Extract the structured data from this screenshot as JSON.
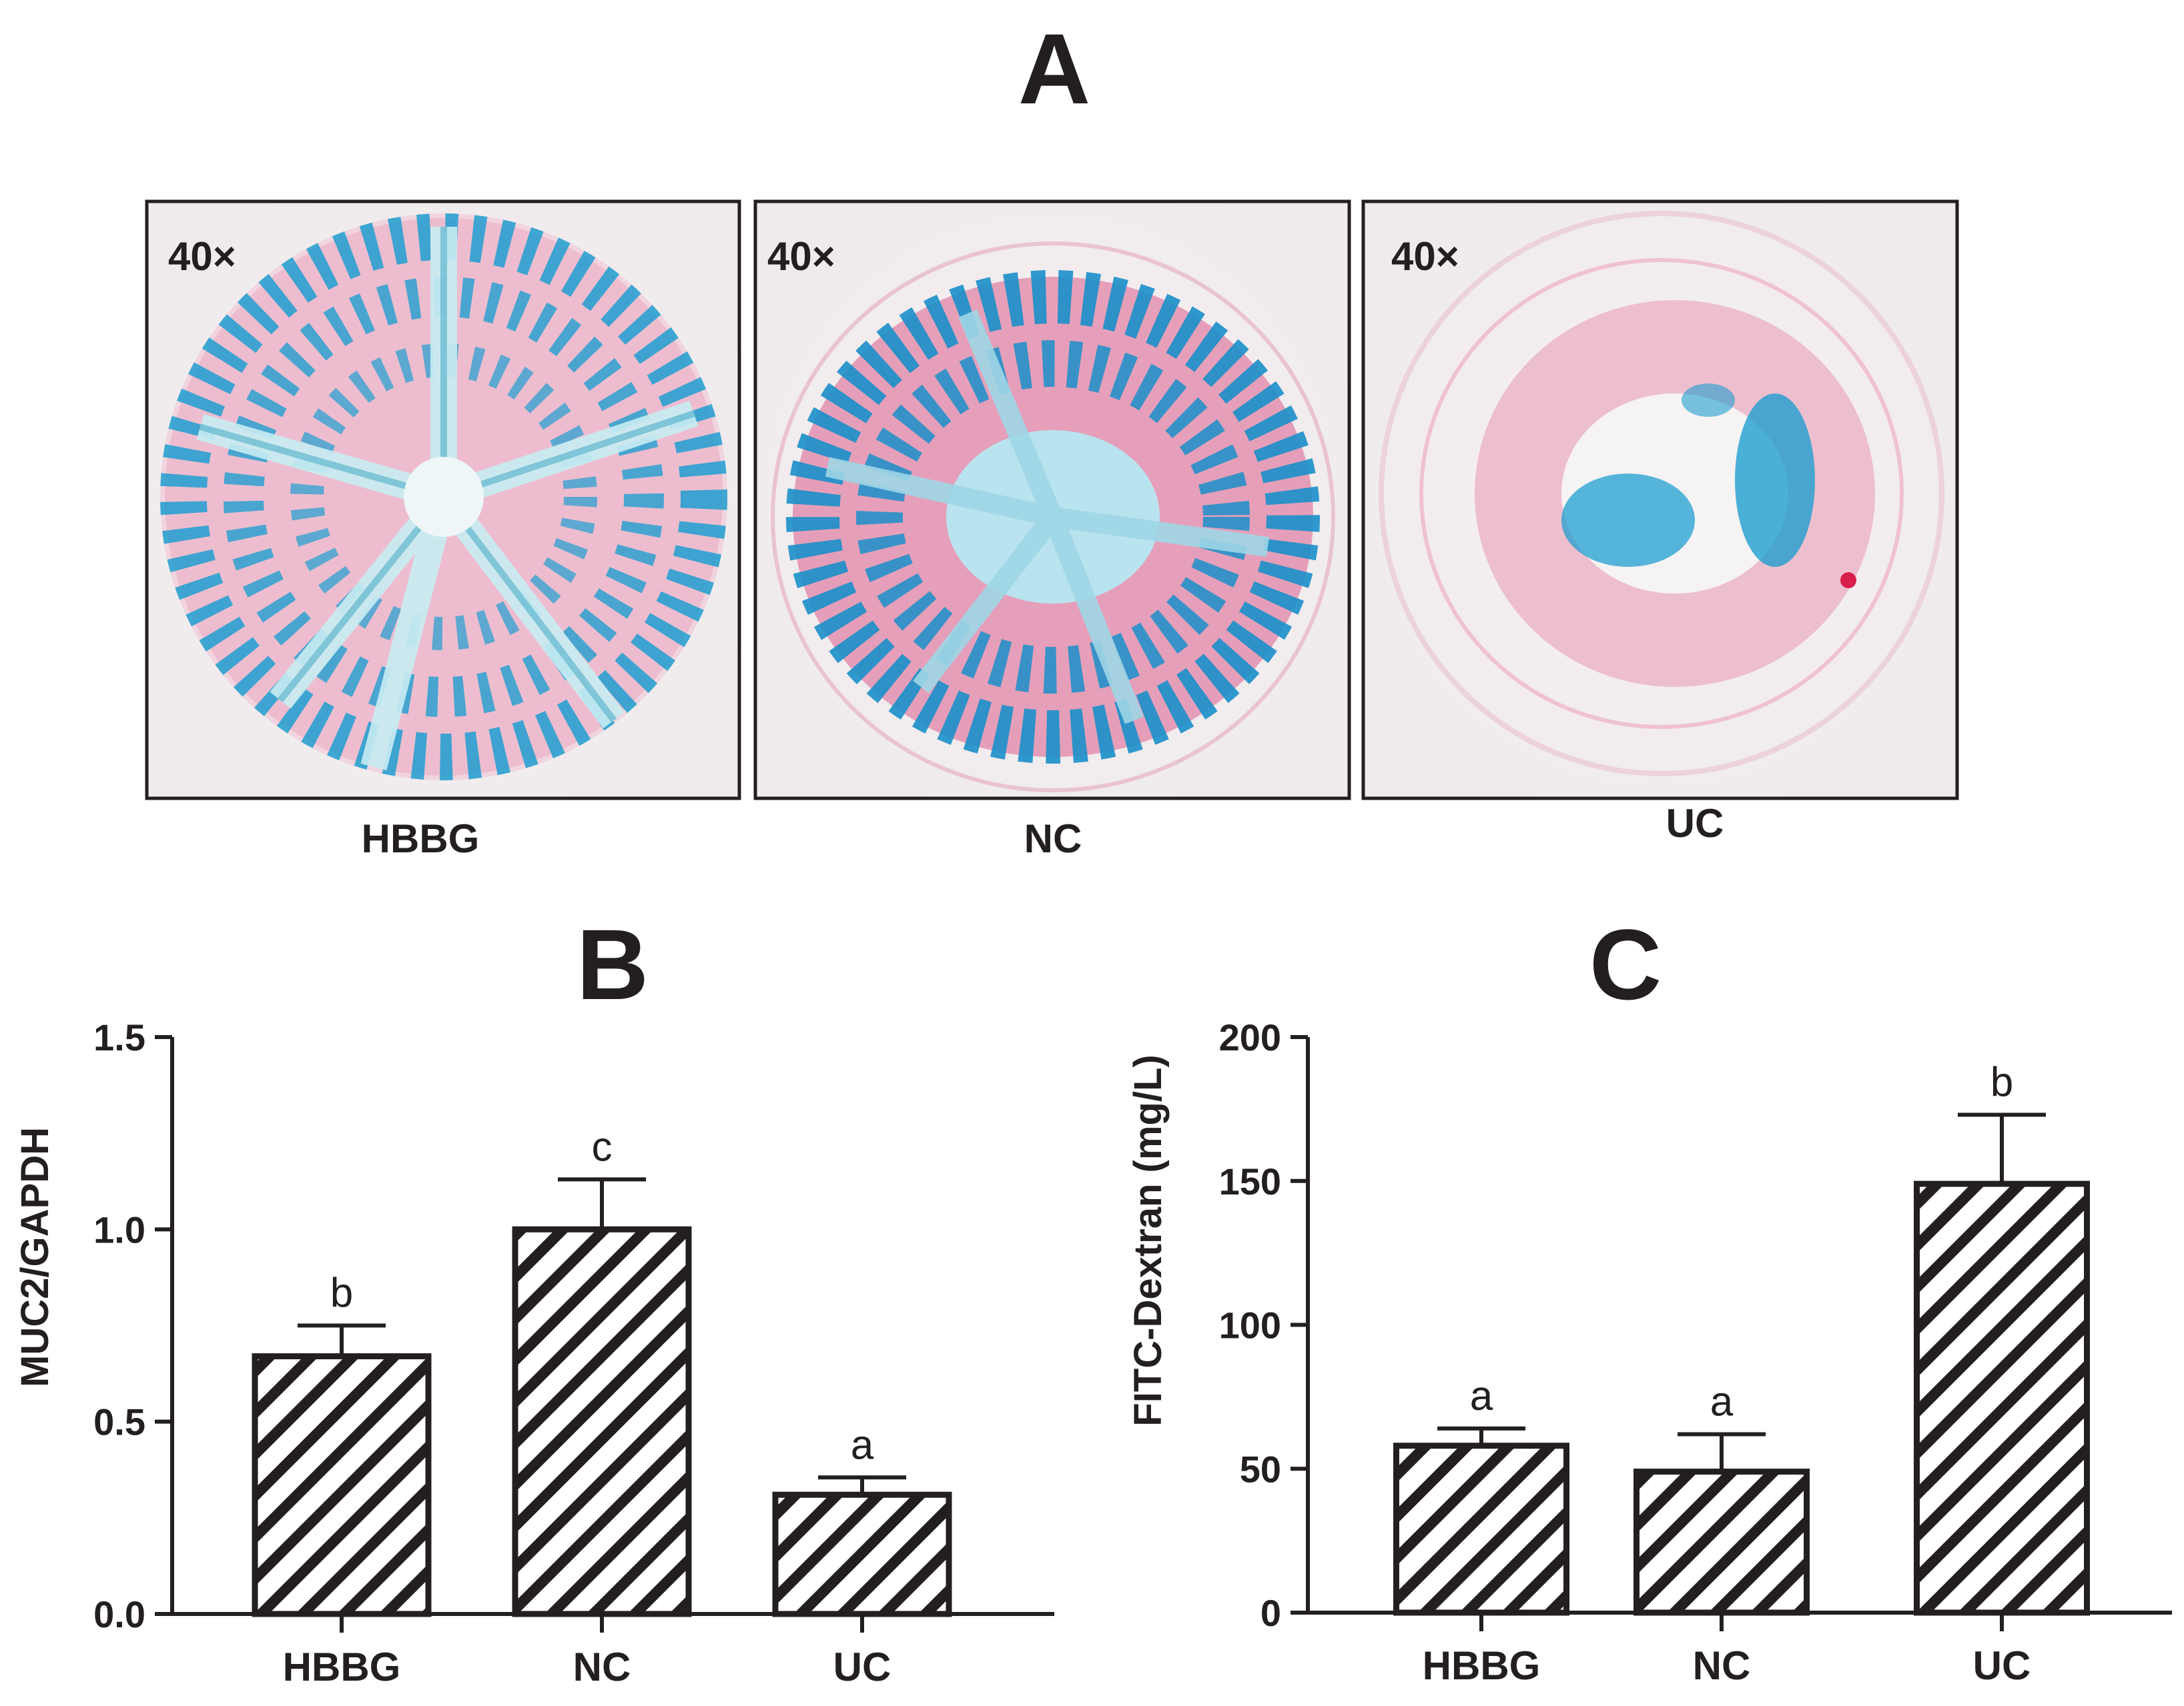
{
  "panels": {
    "A": {
      "letter": "A"
    },
    "B": {
      "letter": "B"
    },
    "C": {
      "letter": "C"
    }
  },
  "micrographs": [
    {
      "magnification": "40×",
      "label": "HBBG"
    },
    {
      "magnification": "40×",
      "label": "NC"
    },
    {
      "magnification": "40×",
      "label": "UC"
    }
  ],
  "colors": {
    "stain_blue": "#1f9fd0",
    "stain_pink": "#e27b9f",
    "background_tissue": "#f4eef1",
    "frame": "#231f20",
    "bar_stroke": "#231f20",
    "bar_fill": "#ffffff",
    "hatch": "diagonal-stripes"
  },
  "chart_data": [
    {
      "type": "bar",
      "panel": "B",
      "categories": [
        "HBBG",
        "NC",
        "UC"
      ],
      "values": [
        0.67,
        1.0,
        0.31
      ],
      "errors": [
        0.08,
        0.13,
        0.045
      ],
      "significance": [
        "b",
        "c",
        "a"
      ],
      "ylabel": "MUC2/GAPDH",
      "ylim": [
        0,
        1.5
      ],
      "yticks": [
        0.0,
        0.5,
        1.0,
        1.5
      ],
      "ytick_labels": [
        "0.0",
        "0.5",
        "1.0",
        "1.5"
      ],
      "grid": false
    },
    {
      "type": "bar",
      "panel": "C",
      "categories": [
        "HBBG",
        "NC",
        "UC"
      ],
      "values": [
        58,
        49,
        149
      ],
      "errors": [
        6,
        13,
        24
      ],
      "significance": [
        "a",
        "a",
        "b"
      ],
      "ylabel": "FITC-Dextran (mg/L)",
      "ylim": [
        0,
        200
      ],
      "yticks": [
        0,
        50,
        100,
        150,
        200
      ],
      "ytick_labels": [
        "0",
        "50",
        "100",
        "150",
        "200"
      ],
      "grid": false
    }
  ]
}
